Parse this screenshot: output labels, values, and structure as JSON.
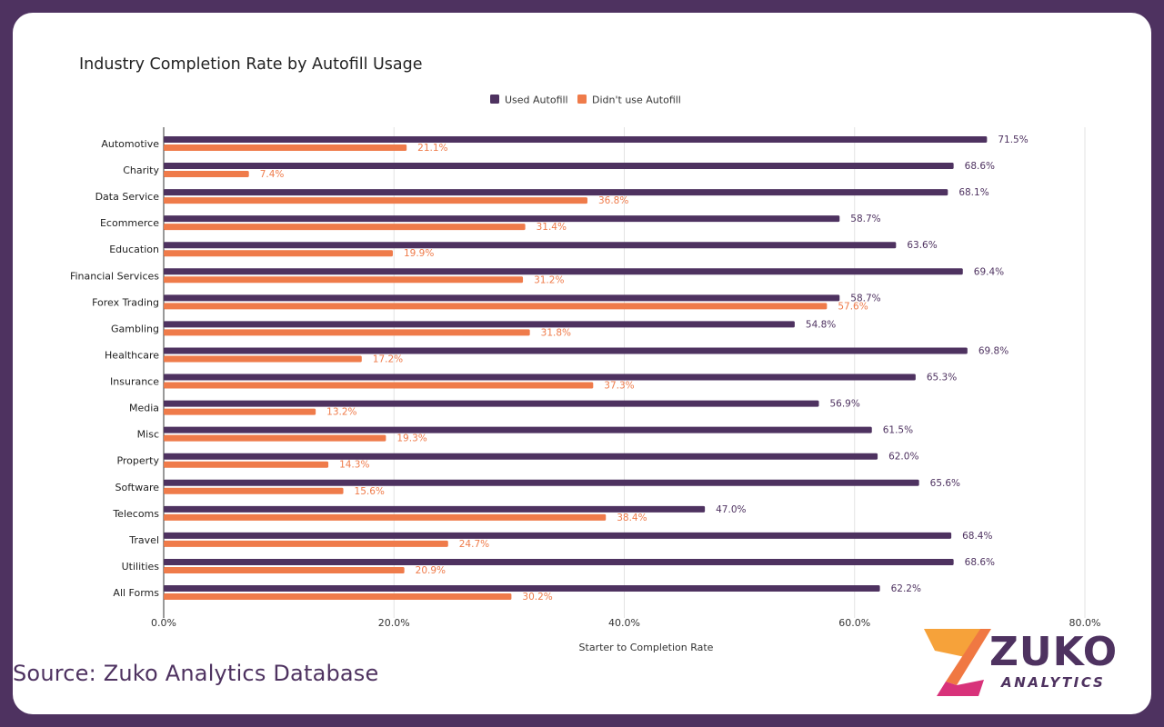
{
  "chart_data": {
    "type": "bar",
    "orientation": "horizontal",
    "title": "Industry Completion Rate by Autofill Usage",
    "xlabel": "Starter to Completion Rate",
    "ylabel": "",
    "xlim": [
      0,
      80
    ],
    "x_ticks": [
      0,
      20,
      40,
      60,
      80
    ],
    "x_tick_labels": [
      "0.0%",
      "20.0%",
      "40.0%",
      "60.0%",
      "80.0%"
    ],
    "grid": "vertical",
    "legend_placement": "top",
    "categories": [
      "Automotive",
      "Charity",
      "Data Service",
      "Ecommerce",
      "Education",
      "Financial Services",
      "Forex Trading",
      "Gambling",
      "Healthcare",
      "Insurance",
      "Media",
      "Misc",
      "Property",
      "Software",
      "Telecoms",
      "Travel",
      "Utilities",
      "All Forms"
    ],
    "series": [
      {
        "name": "Used Autofill",
        "color": "#4e3260",
        "values": [
          71.5,
          68.6,
          68.1,
          58.7,
          63.6,
          69.4,
          58.7,
          54.8,
          69.8,
          65.3,
          56.9,
          61.5,
          62.0,
          65.6,
          47.0,
          68.4,
          68.6,
          62.2
        ],
        "labels": [
          "71.5%",
          "68.6%",
          "68.1%",
          "58.7%",
          "63.6%",
          "69.4%",
          "58.7%",
          "54.8%",
          "69.8%",
          "65.3%",
          "56.9%",
          "61.5%",
          "62.0%",
          "65.6%",
          "47.0%",
          "68.4%",
          "68.6%",
          "62.2%"
        ]
      },
      {
        "name": "Didn't use Autofill",
        "color": "#ef7b4a",
        "values": [
          21.1,
          7.4,
          36.8,
          31.4,
          19.9,
          31.2,
          57.6,
          31.8,
          17.2,
          37.3,
          13.2,
          19.3,
          14.3,
          15.6,
          38.4,
          24.7,
          20.9,
          30.2
        ],
        "labels": [
          "21.1%",
          "7.4%",
          "36.8%",
          "31.4%",
          "19.9%",
          "31.2%",
          "57.6%",
          "31.8%",
          "17.2%",
          "37.3%",
          "13.2%",
          "19.3%",
          "14.3%",
          "15.6%",
          "38.4%",
          "24.7%",
          "20.9%",
          "30.2%"
        ]
      }
    ]
  },
  "source": "Source: Zuko Analytics Database",
  "logo": {
    "word": "ZUKO",
    "sub": "ANALYTICS"
  },
  "colors": {
    "frame": "#4e3260",
    "accent": "#ef7b4a",
    "grid": "#e3e3e3"
  }
}
